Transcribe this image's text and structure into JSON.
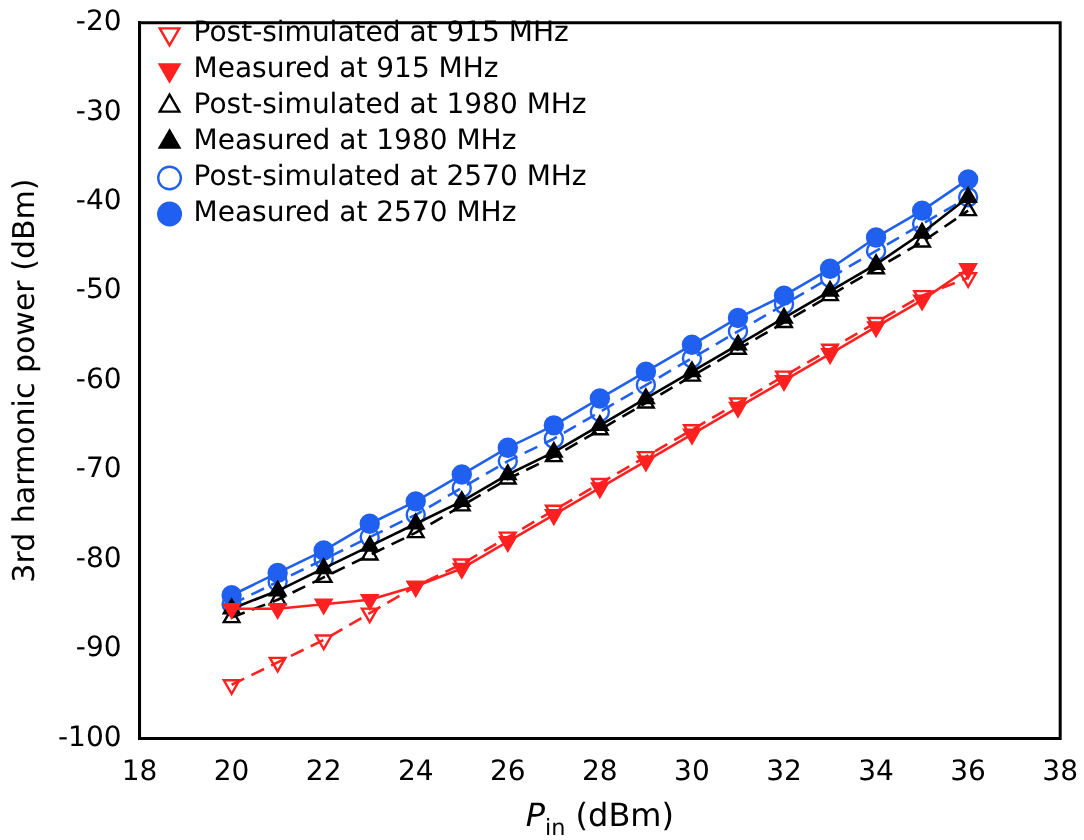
{
  "chart_data": {
    "type": "line",
    "xlabel": "P$_{in}$ (dBm)",
    "ylabel": "3rd harmonic power (dBm)",
    "x": [
      20,
      21,
      22,
      23,
      24,
      25,
      26,
      27,
      28,
      29,
      30,
      31,
      32,
      33,
      34,
      35,
      36
    ],
    "series": [
      {
        "name": "Post-simulated at 915 MHz",
        "color": "#ff2020",
        "marker": "triangle-down",
        "line_style": "dashed",
        "values": [
          -94,
          -91.5,
          -89,
          -86,
          -83,
          -80.5,
          -77.5,
          -74.5,
          -71.5,
          -68.5,
          -65.5,
          -62.5,
          -59.5,
          -56.5,
          -53.5,
          -50.5,
          -48.5
        ]
      },
      {
        "name": "Measured at 915 MHz",
        "color": "#ff2020",
        "marker": "triangle-down",
        "line_style": "solid",
        "values": [
          -85.5,
          -85.5,
          -85,
          -84.5,
          -83,
          -81,
          -78,
          -75,
          -72,
          -69,
          -66,
          -63,
          -60,
          -57,
          -54,
          -51,
          -47.5
        ]
      },
      {
        "name": "Post-simulated at 1980 MHz",
        "color": "#000000",
        "marker": "triangle",
        "line_style": "dashed",
        "values": [
          -86.5,
          -84.5,
          -82,
          -79.5,
          -77,
          -74,
          -71,
          -68.5,
          -65.5,
          -62.5,
          -59.5,
          -56.5,
          -53.5,
          -50.5,
          -47.5,
          -44.5,
          -41
        ]
      },
      {
        "name": "Measured at 1980 MHz",
        "color": "#000000",
        "marker": "triangle",
        "line_style": "solid",
        "values": [
          -85.5,
          -83.5,
          -81,
          -78.5,
          -76,
          -73.5,
          -70.5,
          -68,
          -65,
          -62,
          -59,
          -56,
          -53,
          -50,
          -47,
          -43.5,
          -39.5
        ]
      },
      {
        "name": "Post-simulated at 2570 MHz",
        "color": "#2060f0",
        "marker": "circle",
        "line_style": "dashed",
        "values": [
          -85,
          -82.5,
          -80,
          -77.5,
          -75,
          -72,
          -69,
          -66.5,
          -63.5,
          -60.5,
          -57.5,
          -54.5,
          -51.5,
          -48.5,
          -45.5,
          -42.5,
          -39.5
        ]
      },
      {
        "name": "Measured at 2570 MHz",
        "color": "#2060f0",
        "marker": "circle",
        "line_style": "solid",
        "values": [
          -84,
          -81.5,
          -79,
          -76,
          -73.5,
          -70.5,
          -67.5,
          -65,
          -62,
          -59,
          -56,
          -53,
          -50.5,
          -47.5,
          -44,
          -41,
          -37.5
        ]
      }
    ],
    "xlim": [
      18,
      38
    ],
    "xticks": [
      18,
      20,
      22,
      24,
      26,
      28,
      30,
      32,
      34,
      36,
      38
    ],
    "ylim": [
      -100,
      -20
    ],
    "yticks": [
      -100,
      -90,
      -80,
      -70,
      -60,
      -50,
      -40,
      -30,
      -20
    ],
    "grid": false,
    "legend": "top left"
  }
}
